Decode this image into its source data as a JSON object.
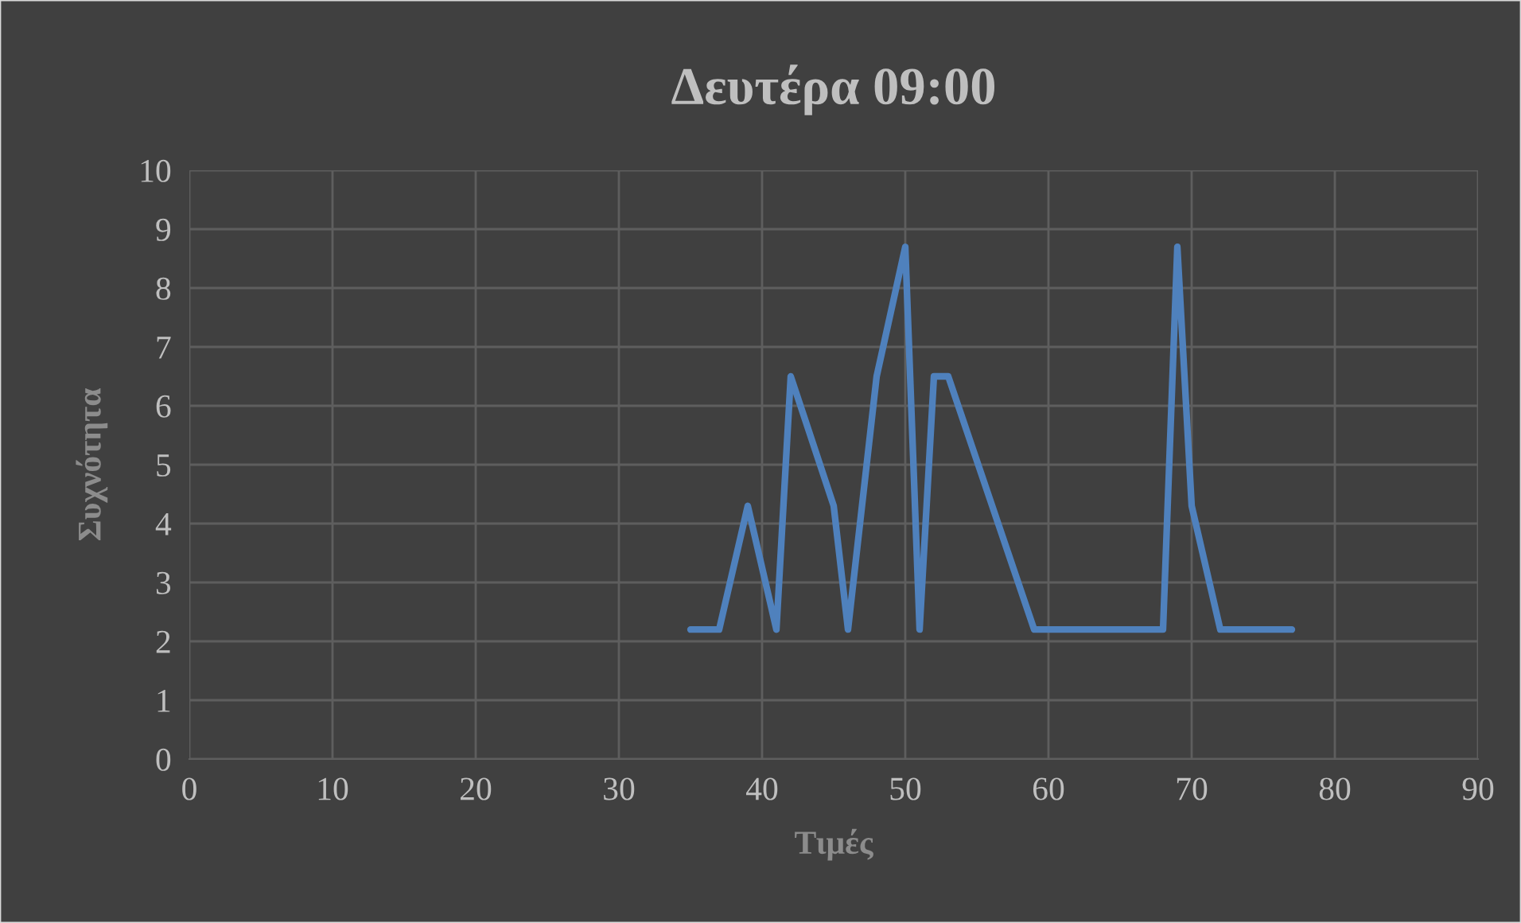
{
  "chart_data": {
    "type": "line",
    "title": "Δευτέρα 09:00",
    "xlabel": "Τιμές",
    "ylabel": "Συχνότητα",
    "x": [
      35,
      37,
      39,
      41,
      42,
      45,
      46,
      48,
      50,
      51,
      52,
      53,
      59,
      68,
      69,
      70,
      72,
      77
    ],
    "series": [
      {
        "color": "#4f81bd",
        "values": [
          2.2,
          2.2,
          4.3,
          2.2,
          6.5,
          4.3,
          2.2,
          6.5,
          8.7,
          2.2,
          6.5,
          6.5,
          2.2,
          2.2,
          8.7,
          4.3,
          2.2,
          2.2
        ]
      }
    ],
    "xlim": [
      0,
      90
    ],
    "xticks": [
      0,
      10,
      20,
      30,
      40,
      50,
      60,
      70,
      80,
      90
    ],
    "ylim": [
      0,
      10
    ],
    "yticks": [
      0,
      1,
      2,
      3,
      4,
      5,
      6,
      7,
      8,
      9,
      10
    ],
    "grid": true,
    "marker": "none",
    "line_style": "solid"
  }
}
